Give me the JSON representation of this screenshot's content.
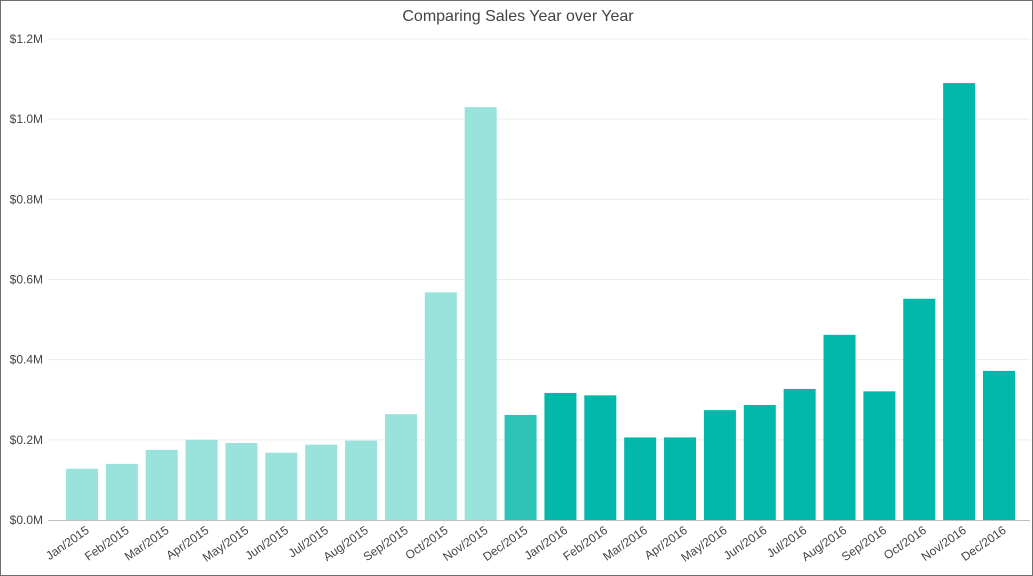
{
  "chart_data": {
    "type": "bar",
    "title": "Comparing Sales Year over Year",
    "xlabel": "",
    "ylabel": "",
    "ylim": [
      0,
      1200000
    ],
    "yticks": [
      0,
      200000,
      400000,
      600000,
      800000,
      1000000,
      1200000
    ],
    "ytick_labels": [
      "$0.0M",
      "$0.2M",
      "$0.4M",
      "$0.6M",
      "$0.8M",
      "$1.0M",
      "$1.2M"
    ],
    "grid": true,
    "categories": [
      "Jan/2015",
      "Feb/2015",
      "Mar/2015",
      "Apr/2015",
      "May/2015",
      "Jun/2015",
      "Jul/2015",
      "Aug/2015",
      "Sep/2015",
      "Oct/2015",
      "Nov/2015",
      "Dec/2015",
      "Jan/2016",
      "Feb/2016",
      "Mar/2016",
      "Apr/2016",
      "May/2016",
      "Jun/2016",
      "Jul/2016",
      "Aug/2016",
      "Sep/2016",
      "Oct/2016",
      "Nov/2016",
      "Dec/2016"
    ],
    "values": [
      128000,
      140000,
      175000,
      200000,
      192000,
      168000,
      188000,
      198000,
      264000,
      568000,
      1030000,
      262000,
      317000,
      311000,
      206000,
      206000,
      274000,
      287000,
      327000,
      462000,
      321000,
      552000,
      1090000,
      372000
    ],
    "colors": {
      "year_2015": "#99e3dc",
      "dec_2015": "#2dc4b5",
      "year_2016": "#01b8aa"
    },
    "bar_colors": [
      "#99e3dc",
      "#99e3dc",
      "#99e3dc",
      "#99e3dc",
      "#99e3dc",
      "#99e3dc",
      "#99e3dc",
      "#99e3dc",
      "#99e3dc",
      "#99e3dc",
      "#99e3dc",
      "#2dc4b5",
      "#01b8aa",
      "#01b8aa",
      "#01b8aa",
      "#01b8aa",
      "#01b8aa",
      "#01b8aa",
      "#01b8aa",
      "#01b8aa",
      "#01b8aa",
      "#01b8aa",
      "#01b8aa",
      "#01b8aa"
    ]
  }
}
